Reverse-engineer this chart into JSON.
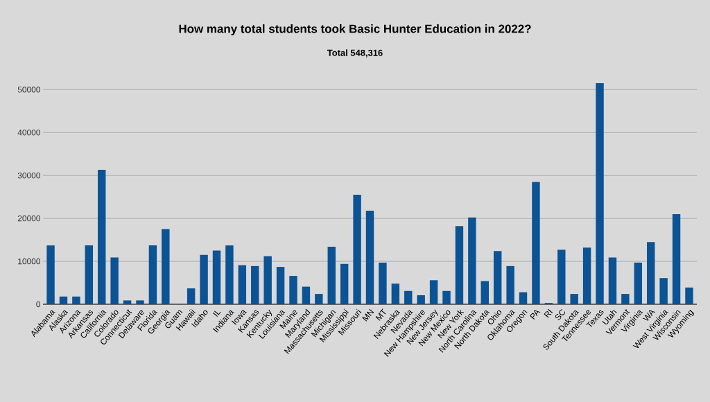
{
  "chart_data": {
    "type": "bar",
    "title": "How many total students took Basic Hunter Education in 2022?",
    "subtitle": "Total 548,316",
    "categories": [
      "Alabama",
      "Alaska",
      "Arizona",
      "Arkansas",
      "California",
      "Colorado",
      "Connecticut",
      "Delaware",
      "Florida",
      "Georgia",
      "Guam",
      "Hawaii",
      "Idaho",
      "IL",
      "Indiana",
      "Iowa",
      "Kansas",
      "Kentucky",
      "Louisiana",
      "Maine",
      "Maryland",
      "Massachusetts",
      "Michigan",
      "Mississippi",
      "Missouri",
      "MN",
      "MT",
      "Nebraska",
      "Nevada",
      "New Hampshire",
      "New Jersey",
      "New Mexico",
      "New York",
      "North Carolina",
      "North Dakota",
      "Ohio",
      "Oklahoma",
      "Oregon",
      "PA",
      "RI",
      "SC",
      "South Dakota",
      "Tennessee",
      "Texas",
      "Utah",
      "Vermont",
      "Virginia",
      "WA",
      "West Virginia",
      "Wisconsin",
      "Wyoming"
    ],
    "values": [
      13700,
      1800,
      1800,
      13700,
      31300,
      10900,
      900,
      900,
      13700,
      17500,
      0,
      3700,
      11500,
      12500,
      13700,
      9100,
      8900,
      11200,
      8700,
      6600,
      4100,
      2400,
      13400,
      9400,
      25500,
      21800,
      9700,
      4800,
      3100,
      2100,
      5600,
      3100,
      18200,
      20200,
      5400,
      12400,
      8900,
      2800,
      28500,
      300,
      12700,
      2400,
      13200,
      51500,
      10900,
      2400,
      9700,
      14500,
      6100,
      21000,
      3900
    ],
    "color": "#0b5394",
    "ylim": [
      0,
      51500
    ],
    "yticks": [
      0,
      10000,
      20000,
      30000,
      40000,
      50000
    ],
    "grid": "y"
  }
}
